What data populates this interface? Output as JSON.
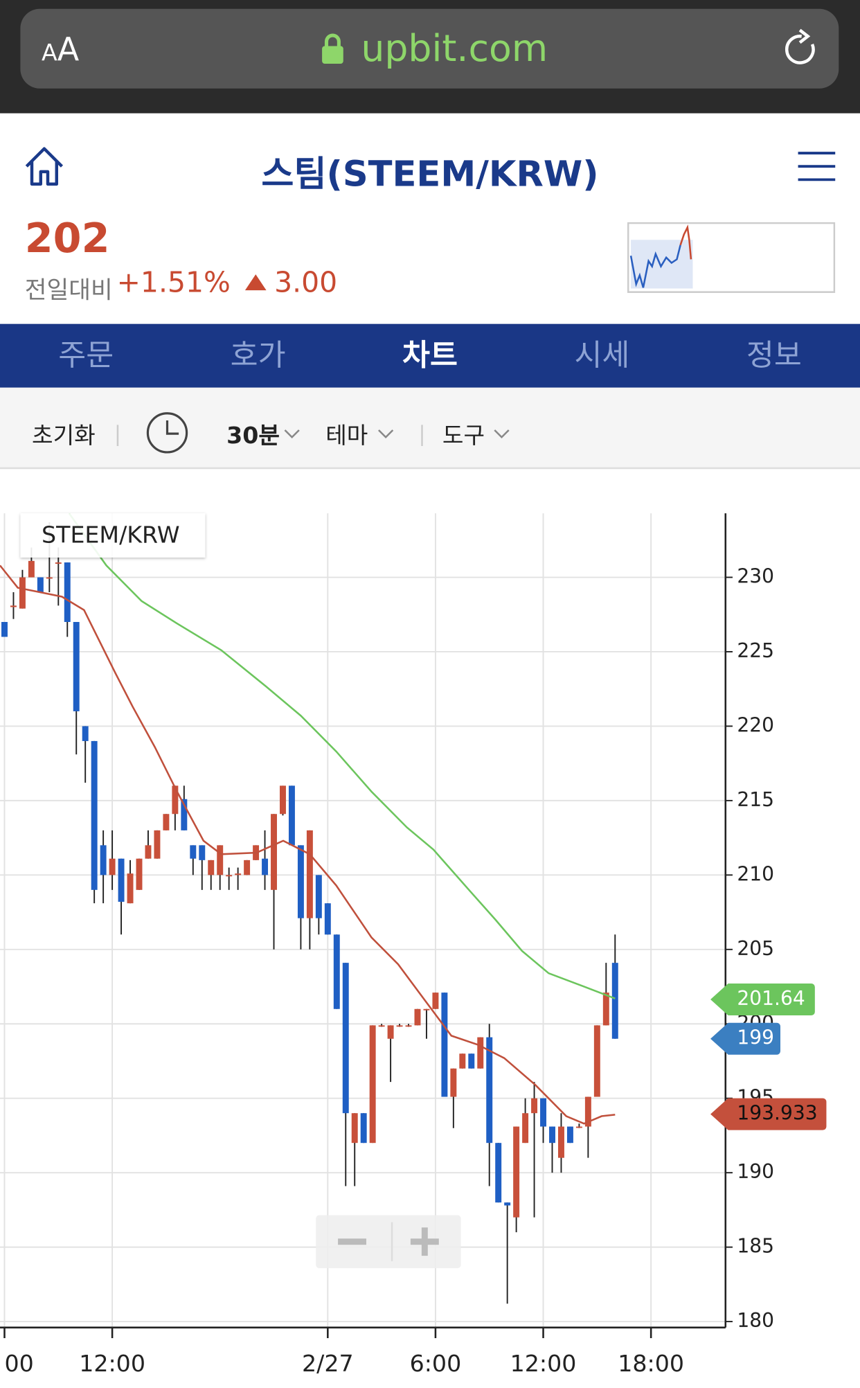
{
  "browser": {
    "font_size_label": "AA",
    "url": "upbit.com"
  },
  "header": {
    "title": "스팀(STEEM/KRW)",
    "price": "202",
    "change_label": "전일대비",
    "change_rate": "+1.51%",
    "change_amount": "3.00"
  },
  "tabs": [
    "주문",
    "호가",
    "차트",
    "시세",
    "정보"
  ],
  "toolbar": {
    "reset": "초기화",
    "interval": "30분",
    "theme": "테마",
    "tools": "도구"
  },
  "chart_data": {
    "type": "candlestick",
    "title": "STEEM/KRW",
    "x": [
      6,
      6.5,
      7,
      7.5,
      8,
      8.5,
      9,
      9.5,
      10,
      10.5,
      11,
      11.5,
      12,
      12.5,
      13,
      13.5,
      14,
      14.5,
      15,
      15.5,
      16,
      16.5,
      17,
      17.5,
      18,
      18.5,
      19,
      19.5,
      20,
      20.5,
      21,
      21.5,
      22,
      22.5,
      23,
      23.5,
      24,
      24.5,
      25,
      25.5,
      26,
      26.5,
      27,
      27.5,
      28,
      28.5,
      29,
      29.5,
      30,
      30.5,
      31,
      31.5,
      32,
      32.5,
      33,
      33.5,
      34,
      34.5,
      35,
      35.5,
      36,
      36.5,
      37,
      37.5,
      38,
      38.5,
      39,
      39.5,
      40
    ],
    "open": [
      227,
      228,
      227.9,
      230,
      230,
      230,
      231,
      231,
      227,
      220,
      219,
      212,
      210,
      211.1,
      208.1,
      209,
      211.1,
      211.1,
      213,
      214.1,
      215.1,
      212,
      212,
      210,
      210,
      210,
      210,
      210,
      211,
      211.1,
      209,
      214.1,
      216,
      212,
      207.1,
      210,
      208.1,
      206,
      204.1,
      192,
      194,
      192,
      199.9,
      199,
      199.9,
      199.9,
      199.9,
      201,
      201,
      202.1,
      195.1,
      197,
      198,
      197,
      199.1,
      192,
      188,
      187,
      192,
      194,
      195,
      193.1,
      191,
      193.1,
      193.1,
      193.1,
      195.1,
      199.9,
      204.1
    ],
    "high": [
      227,
      229,
      230.5,
      232,
      230,
      233.7,
      232,
      231,
      227,
      220,
      219,
      213,
      213,
      211.1,
      211,
      211.1,
      213,
      213,
      214.1,
      216,
      216,
      212,
      212,
      211,
      212,
      210.5,
      210.5,
      211,
      212,
      213,
      214.1,
      216,
      216,
      212,
      213,
      210,
      208.1,
      206,
      204.1,
      194,
      194,
      199.9,
      200,
      199.9,
      200,
      200,
      201,
      201,
      202.1,
      202.1,
      197,
      198,
      198,
      199.1,
      200,
      192,
      188,
      193.1,
      195,
      196.1,
      195,
      193.1,
      194,
      193.1,
      193.3,
      195.1,
      199.9,
      204.1,
      206
    ],
    "low": [
      226,
      227.2,
      227.9,
      230,
      229,
      229,
      228.1,
      226,
      218.1,
      216.2,
      208.1,
      208.1,
      209,
      206,
      208.1,
      209,
      211.1,
      211.1,
      213,
      213,
      213,
      210,
      209,
      209,
      209,
      209,
      209,
      210,
      211,
      209,
      205,
      214,
      212,
      205,
      205,
      206,
      206,
      201,
      189.1,
      189.1,
      192,
      192,
      199.8,
      196.1,
      199.8,
      199.8,
      199.9,
      199,
      201,
      195.1,
      193,
      197,
      197,
      197,
      189.1,
      188,
      181.2,
      186,
      192,
      187,
      192,
      190,
      190,
      192,
      193,
      191,
      195.1,
      199.9,
      199
    ],
    "close": [
      226,
      228.1,
      230,
      231.1,
      229,
      230,
      231,
      227,
      221,
      219,
      209,
      210,
      211.1,
      208.2,
      210.1,
      211.1,
      212,
      213,
      214.1,
      216,
      213,
      211.1,
      211,
      211,
      212,
      210,
      210.1,
      211,
      212,
      210,
      214.1,
      216,
      212,
      207.1,
      213,
      207.1,
      206,
      201,
      194,
      194,
      192,
      199.9,
      199.9,
      199.9,
      199.9,
      199.9,
      201,
      201,
      202.1,
      195.1,
      197,
      198,
      197,
      199.1,
      192,
      188,
      187.8,
      193.1,
      194,
      195,
      193.1,
      192,
      193.1,
      192,
      193.1,
      195.1,
      199.9,
      202.1,
      199
    ],
    "up_color": "#c8503a",
    "down_color": "#1f5fc4",
    "lines": [
      {
        "color": "#c0503c",
        "x": [
          5.75,
          6.74,
          7.97,
          9.2,
          10.43,
          12.16,
          13.14,
          14.37,
          15.61,
          17.08,
          18.07,
          20.04,
          21.52,
          23,
          24.47,
          26.44,
          27.92,
          29.4,
          30.88,
          32.35,
          33.83,
          35.56,
          37.28,
          38.27,
          39.25,
          40
        ],
        "values": [
          230.8,
          229.3,
          229,
          228.7,
          227.8,
          223.6,
          221.3,
          218.6,
          215.6,
          212.3,
          211.4,
          211.5,
          212.3,
          211.4,
          209.3,
          205.8,
          204,
          201.6,
          199.2,
          198.6,
          197.7,
          195.9,
          193.8,
          193.3,
          193.8,
          193.9
        ]
      },
      {
        "color": "#6cc55d",
        "x": [
          9.6,
          11.67,
          13.64,
          15.61,
          18.07,
          20.53,
          22.5,
          24.47,
          26.44,
          28.41,
          29.89,
          31.86,
          33.34,
          34.82,
          36.3,
          38.27,
          40
        ],
        "values": [
          234.3,
          230.8,
          228.4,
          226.9,
          225.1,
          222.7,
          220.7,
          218.3,
          215.6,
          213.2,
          211.7,
          209,
          207,
          204.9,
          203.4,
          202.5,
          201.7
        ]
      }
    ],
    "price_labels": [
      {
        "value": 201.64,
        "color": "#6cc55d"
      },
      {
        "value": 199,
        "color": "#3b7fc1"
      },
      {
        "value": 193.933,
        "color": "#c4503c"
      }
    ],
    "xlim": [
      5.75,
      46.15
    ],
    "ylim": [
      179.6,
      234.3
    ],
    "xticks": [
      {
        "value": 6,
        "label": "00"
      },
      {
        "value": 12,
        "label": "12:00"
      },
      {
        "value": 24,
        "label": "2/27"
      },
      {
        "value": 30,
        "label": "6:00"
      },
      {
        "value": 36,
        "label": "12:00"
      },
      {
        "value": 42,
        "label": "18:00"
      }
    ],
    "yticks": [
      180,
      185,
      190,
      195,
      200,
      205,
      210,
      215,
      220,
      225,
      230
    ],
    "grid": true
  }
}
